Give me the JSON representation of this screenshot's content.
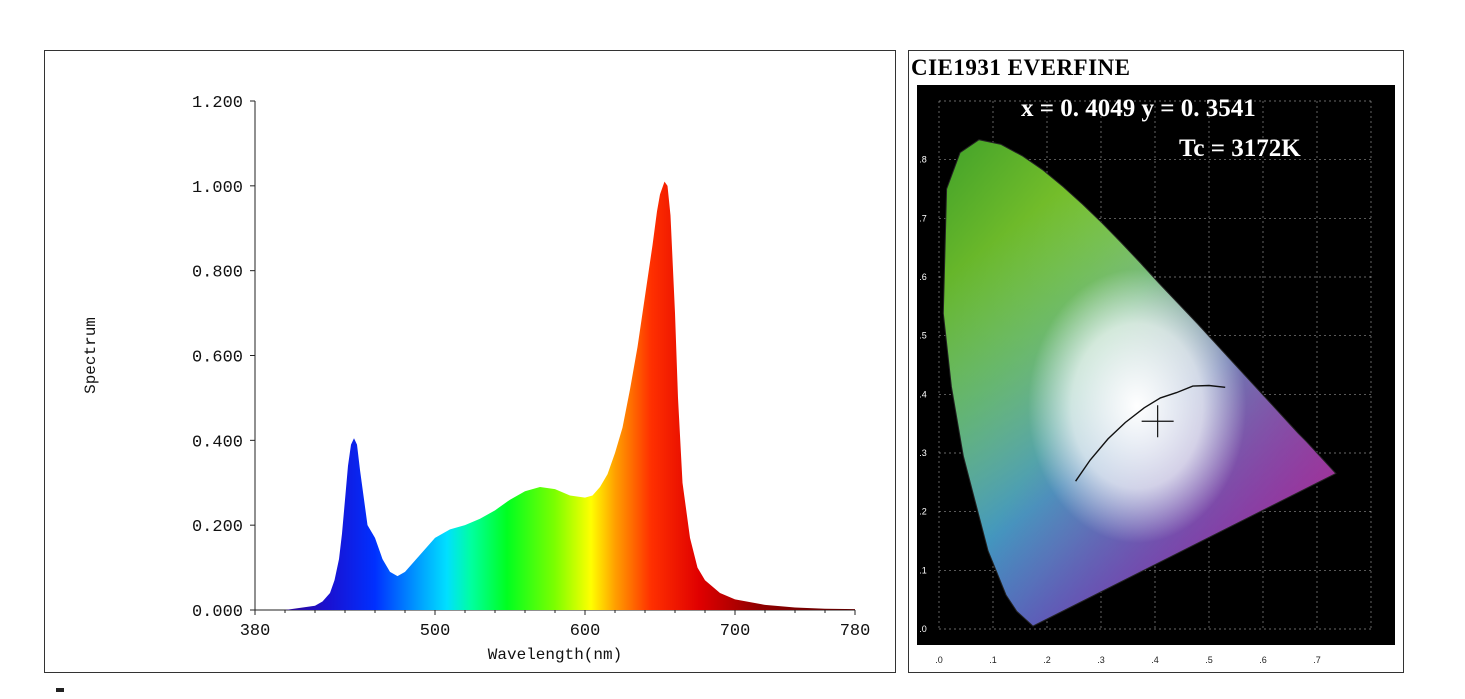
{
  "chart_data": [
    {
      "type": "area",
      "title": "",
      "xlabel": "Wavelength(nm)",
      "ylabel": "Spectrum",
      "xlim": [
        380,
        780
      ],
      "ylim": [
        0,
        1.2
      ],
      "x_ticks": [
        "380",
        "500",
        "600",
        "700",
        "780"
      ],
      "y_ticks": [
        "0.000",
        "0.200",
        "0.400",
        "0.600",
        "0.800",
        "1.000",
        "1.200"
      ],
      "fill": "wavelength-colored spectrum",
      "series": [
        {
          "x": [
            380,
            400,
            410,
            420,
            425,
            430,
            433,
            436,
            438,
            440,
            442,
            444,
            446,
            448,
            450,
            455,
            460,
            465,
            470,
            475,
            480,
            485,
            490,
            495,
            500,
            510,
            520,
            530,
            540,
            550,
            560,
            570,
            580,
            590,
            600,
            605,
            610,
            615,
            620,
            625,
            630,
            635,
            640,
            645,
            648,
            650,
            653,
            655,
            657,
            660,
            662,
            665,
            670,
            675,
            680,
            690,
            700,
            720,
            740,
            760,
            780
          ],
          "y": [
            0.0,
            0.0,
            0.005,
            0.01,
            0.02,
            0.04,
            0.07,
            0.12,
            0.18,
            0.26,
            0.34,
            0.39,
            0.405,
            0.39,
            0.33,
            0.2,
            0.17,
            0.12,
            0.09,
            0.08,
            0.09,
            0.11,
            0.13,
            0.15,
            0.17,
            0.19,
            0.2,
            0.215,
            0.235,
            0.26,
            0.28,
            0.29,
            0.285,
            0.27,
            0.265,
            0.27,
            0.29,
            0.32,
            0.37,
            0.43,
            0.52,
            0.62,
            0.74,
            0.86,
            0.94,
            0.98,
            1.01,
            1.0,
            0.93,
            0.7,
            0.5,
            0.3,
            0.17,
            0.1,
            0.07,
            0.04,
            0.025,
            0.012,
            0.006,
            0.003,
            0.002
          ]
        }
      ]
    },
    {
      "type": "scatter",
      "title": "CIE1931 EVERFINE",
      "xlabel": "",
      "ylabel": "",
      "xlim": [
        0,
        0.8
      ],
      "ylim": [
        0,
        0.9
      ],
      "x_ticks": [
        ".0",
        ".1",
        ".2",
        ".3",
        ".4",
        ".5",
        ".6",
        ".7"
      ],
      "y_ticks": [
        ".0",
        ".1",
        ".2",
        ".3",
        ".4",
        ".5",
        ".6",
        ".7",
        ".8"
      ],
      "background": "black",
      "readout": {
        "xy": "x = 0. 4049 y = 0. 3541",
        "tc": "Tc = 3172K"
      },
      "point": {
        "x": 0.4049,
        "y": 0.3541
      }
    }
  ]
}
